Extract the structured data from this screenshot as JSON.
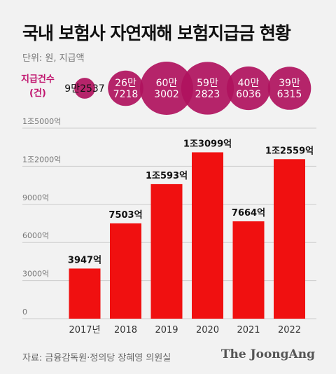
{
  "header": {
    "title": "국내 보험사 자연재해 보험지급금 현황",
    "unit": "단위: 원, 지급액",
    "count_label_line1": "지급건수",
    "count_label_line2": "(건)"
  },
  "footer": {
    "source": "자료: 금융감독원·정의당 장혜영 의원실",
    "logo": "The JoongAng"
  },
  "colors": {
    "bar": "#f01010",
    "bubble": "#b0125e",
    "bubble_text": "#ffffff",
    "grid": "#cccccc",
    "axis_text": "#777777"
  },
  "chart_data": {
    "type": "bar",
    "title": "국내 보험사 자연재해 보험지급금 현황",
    "categories": [
      "2017년",
      "2018",
      "2019",
      "2020",
      "2021",
      "2022"
    ],
    "values": [
      3947,
      7503,
      10593,
      13099,
      7664,
      12559
    ],
    "value_labels": [
      "3947억",
      "7503억",
      "1조593억",
      "1조3099억",
      "7664억",
      "1조2559억"
    ],
    "ylim": [
      0,
      15000
    ],
    "yticks": [
      0,
      3000,
      6000,
      9000,
      12000,
      15000
    ],
    "ytick_labels": [
      "0",
      "3000억",
      "6000억",
      "9000억",
      "1조2000억",
      "1조5000억"
    ],
    "grid": true,
    "claim_counts": [
      92537,
      267218,
      603002,
      592823,
      406036,
      396315
    ],
    "claim_count_labels": [
      [
        "9만2537"
      ],
      [
        "26만",
        "7218"
      ],
      [
        "60만",
        "3002"
      ],
      [
        "59만",
        "2823"
      ],
      [
        "40만",
        "6036"
      ],
      [
        "39만",
        "6315"
      ]
    ]
  }
}
